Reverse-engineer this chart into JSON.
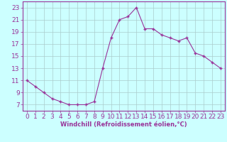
{
  "x": [
    0,
    1,
    2,
    3,
    4,
    5,
    6,
    7,
    8,
    9,
    10,
    11,
    12,
    13,
    14,
    15,
    16,
    17,
    18,
    19,
    20,
    21,
    22,
    23
  ],
  "y": [
    11,
    10,
    9,
    8,
    7.5,
    7,
    7,
    7,
    7.5,
    13,
    18,
    21,
    21.5,
    23,
    19.5,
    19.5,
    18.5,
    18,
    17.5,
    18,
    15.5,
    15,
    14,
    13
  ],
  "line_color": "#993399",
  "marker_color": "#993399",
  "bg_color": "#ccffff",
  "grid_color": "#aacccc",
  "xlabel": "Windchill (Refroidissement éolien,°C)",
  "xlabel_color": "#993399",
  "tick_color": "#993399",
  "spine_color": "#993399",
  "ylim": [
    6,
    24
  ],
  "xlim": [
    -0.5,
    23.5
  ],
  "yticks": [
    7,
    9,
    11,
    13,
    15,
    17,
    19,
    21,
    23
  ],
  "xticks": [
    0,
    1,
    2,
    3,
    4,
    5,
    6,
    7,
    8,
    9,
    10,
    11,
    12,
    13,
    14,
    15,
    16,
    17,
    18,
    19,
    20,
    21,
    22,
    23
  ],
  "tick_fontsize": 6.5,
  "xlabel_fontsize": 6.0
}
